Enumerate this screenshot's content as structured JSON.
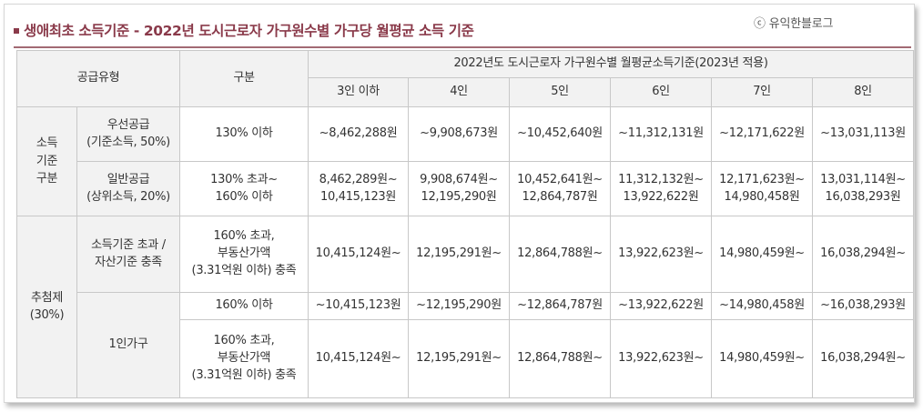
{
  "title": "생애최초 소득기준 - 2022년 도시근로자 가구원수별 가구당 월평균 소득 기준",
  "watermark": "ⓒ 유익한블로그",
  "header": {
    "supply_type": "공급유형",
    "category": "구분",
    "group_title": "2022년도 도시근로자 가구원수별 월평균소득기준(2023년 적용)",
    "household_sizes": [
      "3인 이하",
      "4인",
      "5인",
      "6인",
      "7인",
      "8인"
    ]
  },
  "groups": {
    "income": "소득\n기준\n구분",
    "lottery": "추첨제\n(30%)"
  },
  "rows": [
    {
      "type": "우선공급\n(기준소득, 50%)",
      "condition": "130% 이하",
      "values": [
        "~8,462,288원",
        "~9,908,673원",
        "~10,452,640원",
        "~11,312,131원",
        "~12,171,622원",
        "~13,031,113원"
      ]
    },
    {
      "type": "일반공급\n(상위소득, 20%)",
      "condition": "130% 초과~\n160% 이하",
      "values": [
        "8,462,289원~\n10,415,123원",
        "9,908,674원~\n12,195,290원",
        "10,452,641원~\n12,864,787원",
        "11,312,132원~\n13,922,622원",
        "12,171,623원~\n14,980,458원",
        "13,031,114원~\n16,038,293원"
      ]
    },
    {
      "type": "소득기준 초과 /\n자산기준 충족",
      "condition": "160% 초과,\n부동산가액\n(3.31억원 이하) 충족",
      "values": [
        "10,415,124원~",
        "12,195,291원~",
        "12,864,788원~",
        "13,922,623원~",
        "14,980,459원~",
        "16,038,294원~"
      ]
    },
    {
      "type": "1인가구",
      "condition": "160% 이하",
      "values": [
        "~10,415,123원",
        "~12,195,290원",
        "~12,864,787원",
        "~13,922,622원",
        "~14,980,458원",
        "~16,038,293원"
      ]
    },
    {
      "condition": "160% 초과,\n부동산가액\n(3.31억원 이하) 충족",
      "values": [
        "10,415,124원~",
        "12,195,291원~",
        "12,864,788원~",
        "13,922,623원~",
        "14,980,459원~",
        "16,038,294원~"
      ]
    }
  ]
}
